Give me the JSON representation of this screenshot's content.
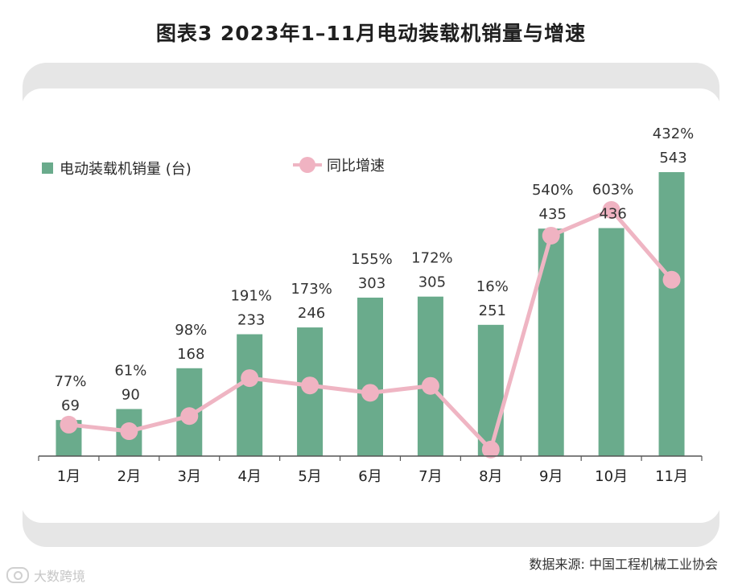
{
  "title": "图表3   2023年1–11月电动装载机销量与增速",
  "colors": {
    "bar": "#6aab8c",
    "line": "#efb5c3",
    "dot": "#f0b3c2",
    "axis": "#555555",
    "text": "#333333"
  },
  "legend": {
    "bar_label": "电动装载机销量 (台)",
    "line_label": "同比增速"
  },
  "source": "数据来源: 中国工程机械工业协会",
  "watermark": "大数跨境",
  "chart_data": {
    "type": "bar+line",
    "title": "2023年1–11月电动装载机销量与增速",
    "categories": [
      "1月",
      "2月",
      "3月",
      "4月",
      "5月",
      "6月",
      "7月",
      "8月",
      "9月",
      "10月",
      "11月"
    ],
    "series": [
      {
        "name": "电动装载机销量 (台)",
        "type": "bar",
        "values": [
          69,
          90,
          168,
          233,
          246,
          303,
          305,
          251,
          435,
          436,
          543
        ],
        "labels": [
          "69",
          "90",
          "168",
          "233",
          "246",
          "303",
          "305",
          "251",
          "435",
          "436",
          "543"
        ]
      },
      {
        "name": "同比增速",
        "type": "line",
        "values": [
          77,
          61,
          98,
          191,
          173,
          155,
          172,
          16,
          540,
          603,
          432
        ],
        "labels": [
          "77%",
          "61%",
          "98%",
          "191%",
          "173%",
          "155%",
          "172%",
          "16%",
          "540%",
          "603%",
          "432%"
        ]
      }
    ],
    "ylim_bar": [
      0,
      560
    ],
    "ylim_line": [
      0,
      660
    ],
    "grid": false
  }
}
